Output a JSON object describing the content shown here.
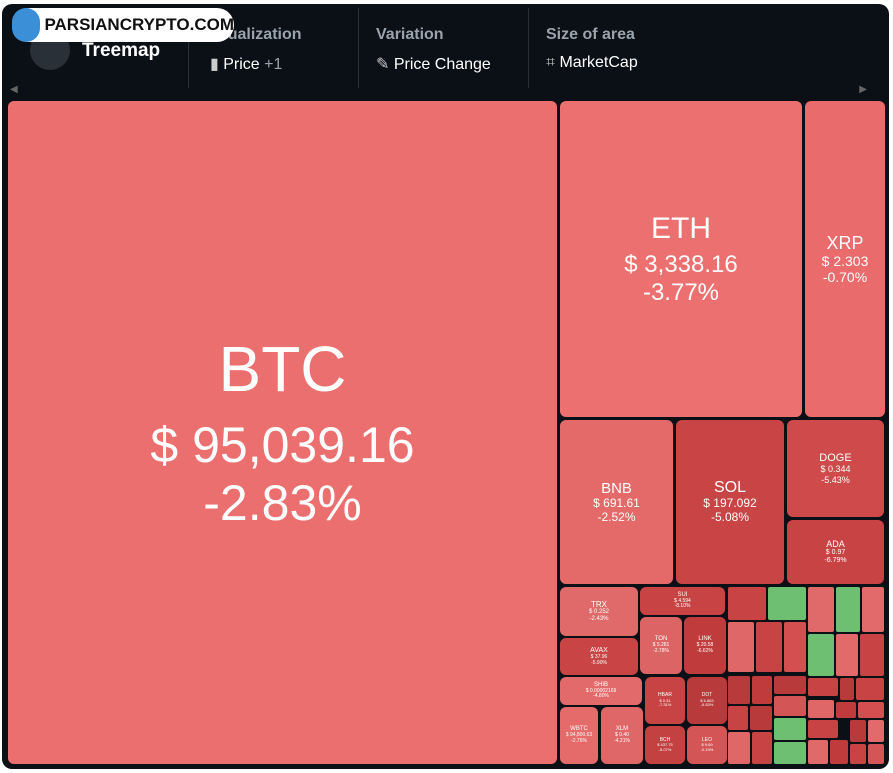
{
  "watermark": "PARSIANCRYPTO.COM",
  "toolbar": {
    "title": "Treemap",
    "groups": [
      {
        "label": "Visualization",
        "value": "Price",
        "extra": "+1"
      },
      {
        "label": "Variation",
        "value": "Price Change"
      },
      {
        "label": "Size of area",
        "value": "MarketCap"
      }
    ]
  },
  "tiles": [
    {
      "name": "BTC",
      "price": "$ 95,039.16",
      "change": "-2.83%"
    },
    {
      "name": "ETH",
      "price": "$ 3,338.16",
      "change": "-3.77%"
    },
    {
      "name": "XRP",
      "price": "$ 2.303",
      "change": "-0.70%"
    },
    {
      "name": "BNB",
      "price": "$ 691.61",
      "change": "-2.52%"
    },
    {
      "name": "SOL",
      "price": "$ 197.092",
      "change": "-5.08%"
    },
    {
      "name": "DOGE",
      "price": "$ 0.344",
      "change": "-5.43%"
    },
    {
      "name": "ADA",
      "price": "$ 0.97",
      "change": "-6.79%"
    },
    {
      "name": "TRX",
      "price": "$ 0.252",
      "change": "-2.43%"
    },
    {
      "name": "AVAX",
      "price": "$ 37.96",
      "change": "-5.90%"
    },
    {
      "name": "SHIB",
      "price": "$ 0.00002169",
      "change": "-4.80%"
    },
    {
      "name": "SUI",
      "price": "$ 4.594",
      "change": "-8.10%"
    },
    {
      "name": "TON",
      "price": "$ 5.281",
      "change": "-2.78%"
    },
    {
      "name": "LINK",
      "price": "$ 20.58",
      "change": "-6.62%"
    },
    {
      "name": "WBTC",
      "price": "$ 94,800.63",
      "change": "-2.76%"
    },
    {
      "name": "XLM",
      "price": "$ 0.40",
      "change": "-4.21%"
    },
    {
      "name": "HBAR",
      "price": "$ 0.31",
      "change": "-7.31%"
    },
    {
      "name": "DOT",
      "price": "$ 6.863",
      "change": "-6.83%"
    },
    {
      "name": "BCH",
      "price": "$ 437.75",
      "change": "-5.07%"
    },
    {
      "name": "LEO",
      "price": "$ 9.69",
      "change": "-0.19%"
    }
  ]
}
